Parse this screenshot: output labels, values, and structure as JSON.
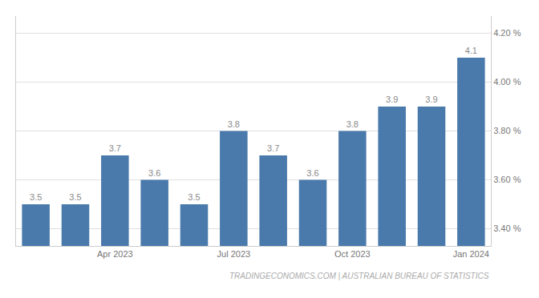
{
  "chart_data": {
    "type": "bar",
    "categories": [
      null,
      null,
      "Apr 2023",
      null,
      null,
      "Jul 2023",
      null,
      null,
      "Oct 2023",
      null,
      null,
      "Jan 2024"
    ],
    "values": [
      3.5,
      3.5,
      3.7,
      3.6,
      3.5,
      3.8,
      3.7,
      3.6,
      3.8,
      3.9,
      3.9,
      4.1
    ],
    "color": "#4a7aab",
    "ylim": [
      3.33,
      4.27
    ],
    "yticks": [
      {
        "value": 3.4,
        "label": "3.40 %"
      },
      {
        "value": 3.6,
        "label": "3.60 %"
      },
      {
        "value": 3.8,
        "label": "3.80 %"
      },
      {
        "value": 4.0,
        "label": "4.00 %"
      },
      {
        "value": 4.2,
        "label": "4.20 %"
      }
    ],
    "grid": true,
    "data_labels": true,
    "annotations": [
      "TRADINGECONOMICS.COM | AUSTRALIAN BUREAU OF STATISTICS"
    ]
  }
}
